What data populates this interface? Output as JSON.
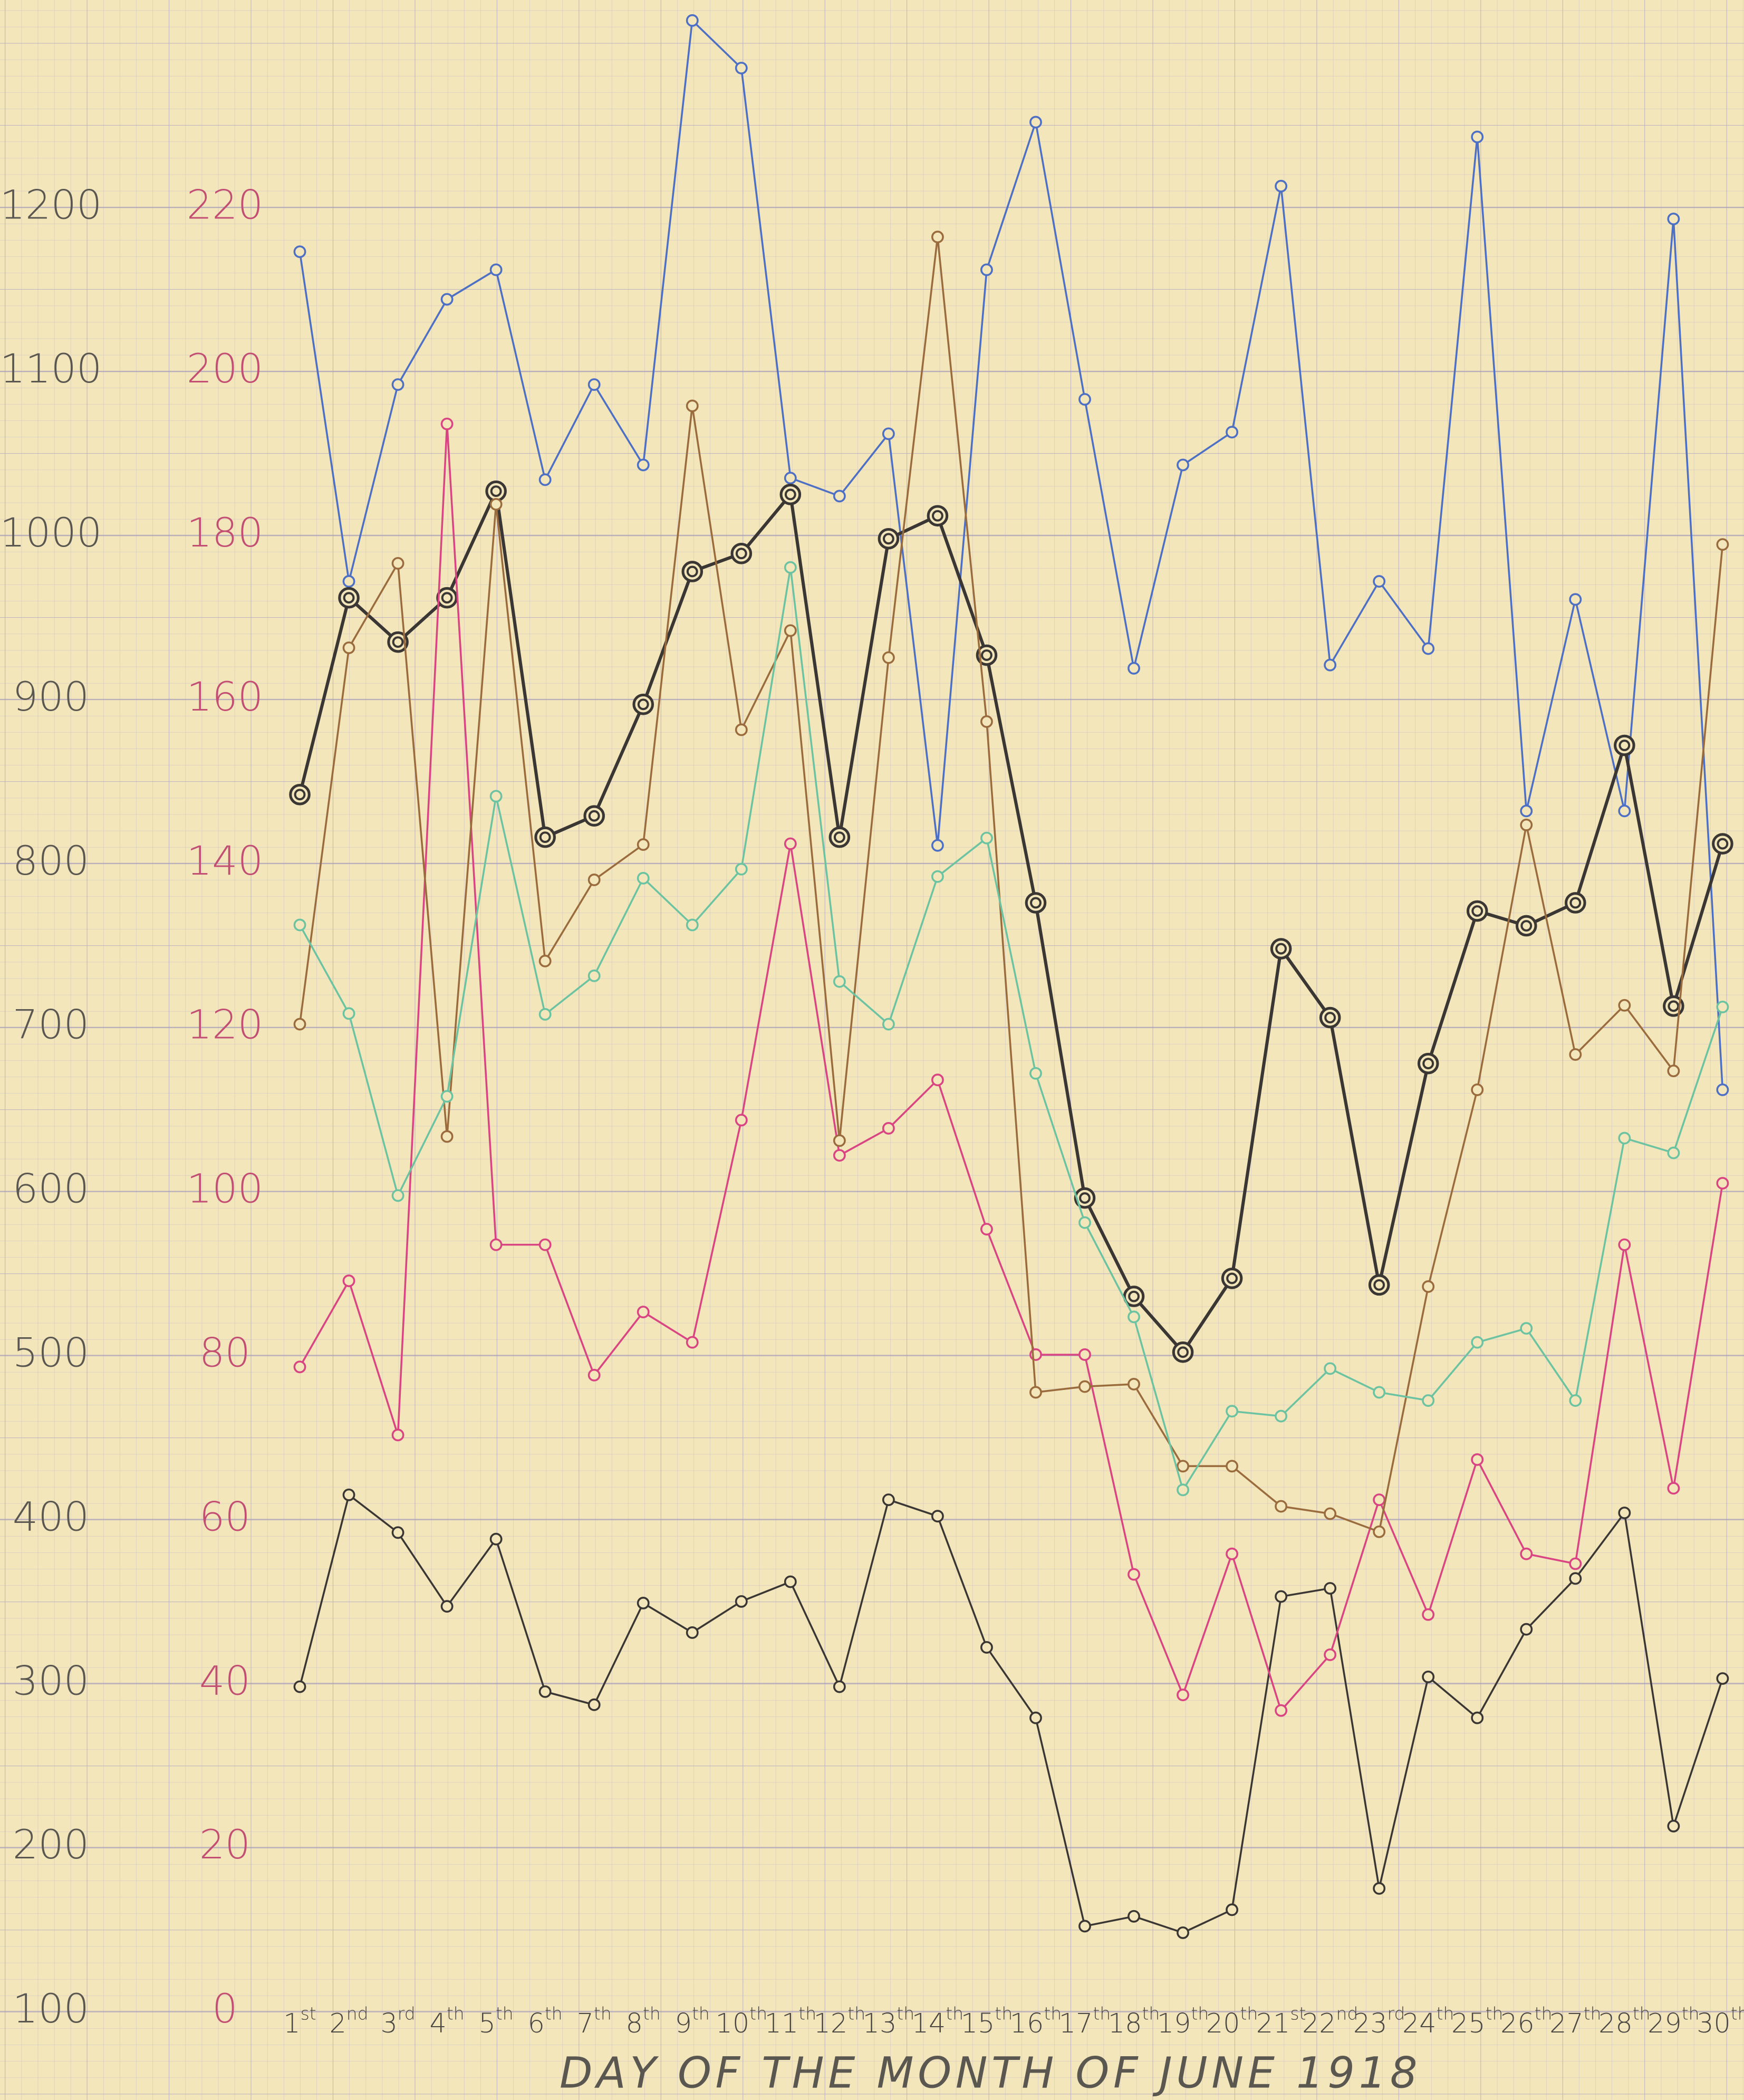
{
  "chart_data": {
    "type": "line",
    "x_label": "DAY OF THE MONTH OF JUNE 1918",
    "categories": [
      "1st",
      "2nd",
      "3rd",
      "4th",
      "5th",
      "6th",
      "7th",
      "8th",
      "9th",
      "10th",
      "11th",
      "12th",
      "13th",
      "14th",
      "15th",
      "16th",
      "17th",
      "18th",
      "19th",
      "20th",
      "21st",
      "22nd",
      "23rd",
      "24th",
      "25th",
      "26th",
      "27th",
      "28th",
      "29th",
      "30th"
    ],
    "ylim": [
      46,
      1326.5
    ],
    "yticks": [
      100,
      200,
      300,
      400,
      500,
      600,
      700,
      800,
      900,
      1000,
      1100,
      1200
    ],
    "ytick_color": "#5a5650",
    "y2lim": [
      -10.8,
      245.3
    ],
    "y2ticks": [
      0,
      20,
      40,
      60,
      80,
      100,
      120,
      140,
      160,
      180,
      200,
      220
    ],
    "y2tick_color": "#c24f73",
    "grid": true,
    "series": [
      {
        "color": "#4d6fc4",
        "marker": "single",
        "values": [
          1173,
          972,
          1092,
          1144,
          1162,
          1034,
          1092,
          1043,
          1314,
          1285,
          1035,
          1024,
          1062,
          811,
          1162,
          1252,
          1083,
          919,
          1043,
          1063,
          1213,
          921,
          972,
          931,
          1243,
          832,
          961,
          832,
          1193,
          662
        ]
      },
      {
        "color": "#3a3633",
        "marker": "double",
        "values": [
          842,
          962,
          935,
          962,
          1027,
          816,
          829,
          897,
          978,
          989,
          1025,
          816,
          998,
          1012,
          927,
          776,
          596,
          536,
          502,
          547,
          748,
          706,
          543,
          678,
          771,
          762,
          776,
          872,
          713,
          812
        ]
      },
      {
        "color": "#3a3633",
        "marker": "single",
        "values": [
          298,
          415,
          392,
          347,
          388,
          295,
          287,
          349,
          331,
          350,
          362,
          298,
          412,
          402,
          322,
          279,
          152,
          158,
          148,
          162,
          353,
          358,
          175,
          304,
          279,
          333,
          364,
          404,
          213,
          303
        ]
      },
      {
        "color": "#d94482",
        "marker": "single",
        "axis": "y2",
        "values": [
          78.6,
          89.1,
          70.3,
          193.6,
          93.5,
          93.5,
          77.6,
          85.3,
          81.6,
          108.7,
          142.4,
          104.4,
          107.7,
          113.6,
          95.4,
          80.1,
          80.1,
          53.3,
          38.6,
          55.8,
          36.7,
          43.5,
          62.4,
          48.4,
          67.3,
          55.8,
          54.6,
          93.5,
          63.8,
          101
        ]
      },
      {
        "color": "#9a6b3c",
        "marker": "single",
        "axis": "y2",
        "values": [
          120.4,
          166.3,
          176.6,
          106.7,
          183.8,
          128.1,
          138,
          142.3,
          195.8,
          156.3,
          168.4,
          106.2,
          165.1,
          216.4,
          157.3,
          75.5,
          76.2,
          76.5,
          66.5,
          66.5,
          61.6,
          60.7,
          58.5,
          88.4,
          112.4,
          144.7,
          116.7,
          122.7,
          114.7,
          178.9
        ]
      },
      {
        "color": "#6cc3a2",
        "marker": "single",
        "axis": "y2",
        "values": [
          132.5,
          121.7,
          99.5,
          111.6,
          148.2,
          121.6,
          126.3,
          138.2,
          132.5,
          139.3,
          176.1,
          125.6,
          120.4,
          138.4,
          143.1,
          114.4,
          96.2,
          84.7,
          63.6,
          73.2,
          72.6,
          78.4,
          75.5,
          74.5,
          81.6,
          83.3,
          74.5,
          106.5,
          104.7,
          122.5
        ]
      }
    ]
  }
}
